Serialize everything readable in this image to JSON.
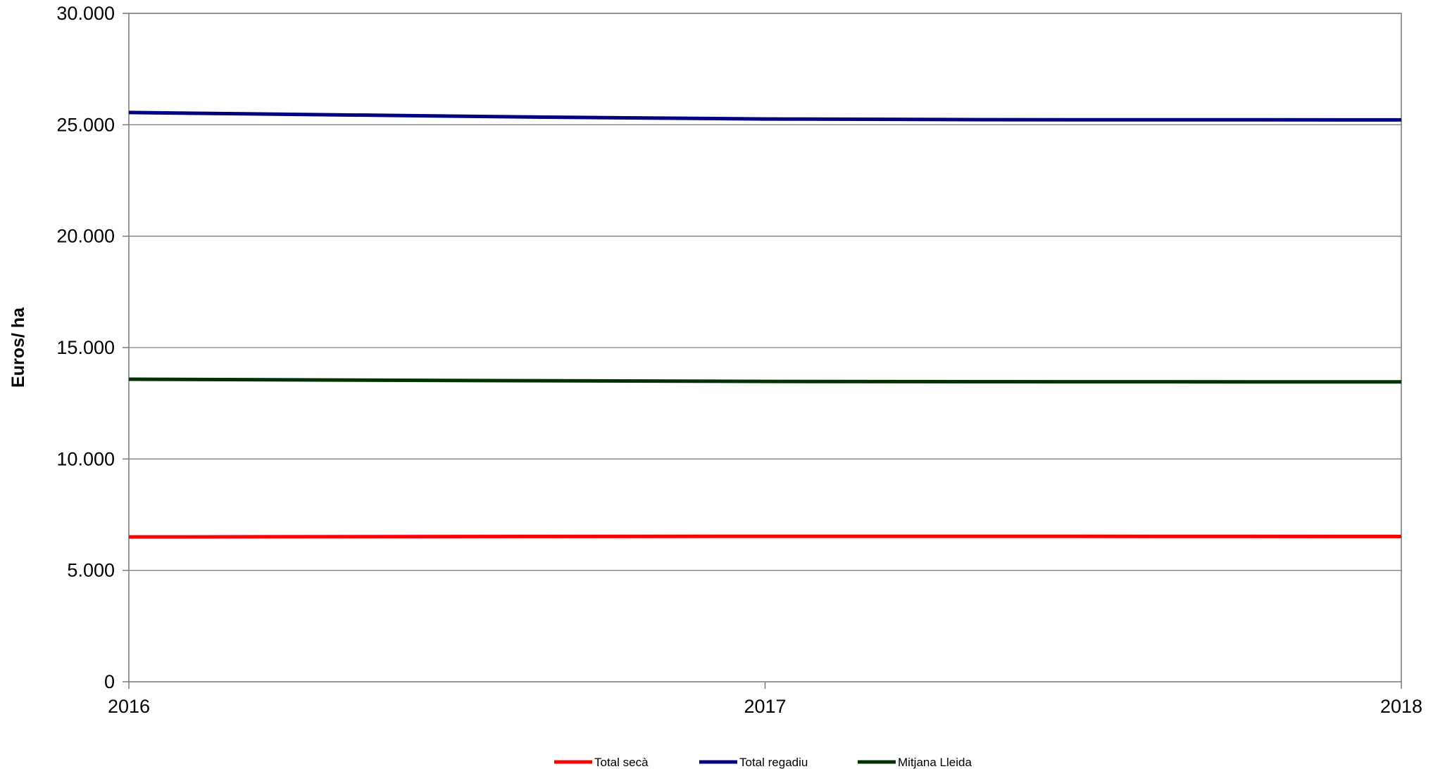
{
  "chart_data": {
    "type": "line",
    "title": "",
    "xlabel": "",
    "ylabel": "Euros/ ha",
    "x": [
      "2016",
      "2017",
      "2018"
    ],
    "ylim": [
      0,
      30000
    ],
    "yticks": [
      0,
      5000,
      10000,
      15000,
      20000,
      25000,
      30000
    ],
    "ytick_labels": [
      "0",
      "5.000",
      "10.000",
      "15.000",
      "20.000",
      "25.000",
      "30.000"
    ],
    "grid": true,
    "legend_position": "bottom",
    "series": [
      {
        "name": "Total secà",
        "color": "#ff0000",
        "values": [
          6500,
          6530,
          6520
        ]
      },
      {
        "name": "Total regadiu",
        "color": "#000080",
        "values": [
          25550,
          25260,
          25220
        ]
      },
      {
        "name": "Mitjana Lleida",
        "color": "#003300",
        "values": [
          13580,
          13480,
          13460
        ]
      }
    ]
  }
}
